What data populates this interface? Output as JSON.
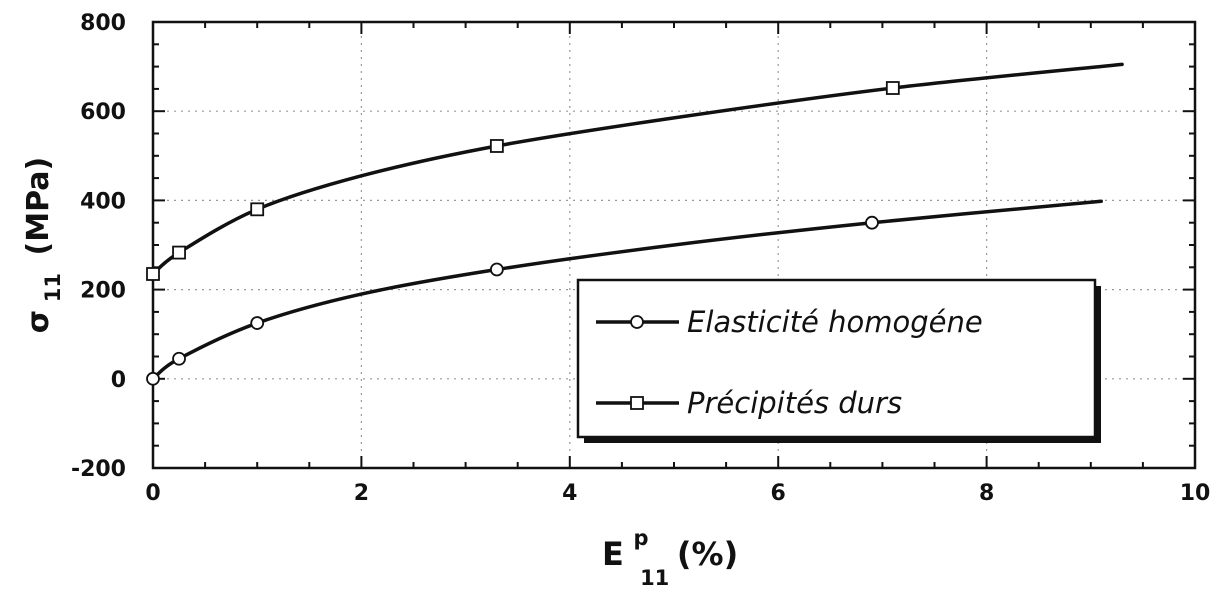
{
  "chart_data": {
    "type": "line",
    "xlabel": {
      "main": "E",
      "sup": "p",
      "sub": "11",
      "unit": "(%)"
    },
    "ylabel": {
      "main": "σ",
      "sub": "11",
      "unit": "(MPa)"
    },
    "xlim": [
      0,
      10
    ],
    "ylim": [
      -200,
      800
    ],
    "xticks": [
      0,
      2,
      4,
      6,
      8,
      10
    ],
    "yticks": [
      -200,
      0,
      200,
      400,
      600,
      800
    ],
    "xtick_labels": [
      "0",
      "2",
      "4",
      "6",
      "8",
      "10"
    ],
    "ytick_labels": [
      "-200",
      "0",
      "200",
      "400",
      "600",
      "800"
    ],
    "grid": "dotted",
    "legend_position": "lower-right",
    "series": [
      {
        "name": "Elasticité homogéne",
        "marker": "circle",
        "x": [
          0,
          0.25,
          1.0,
          2.0,
          3.3,
          5.0,
          6.9,
          9.1
        ],
        "y": [
          0,
          45,
          125,
          190,
          245,
          300,
          350,
          398
        ],
        "marker_x": [
          0,
          0.25,
          1.0,
          3.3,
          6.9
        ],
        "marker_y": [
          0,
          45,
          125,
          245,
          350
        ]
      },
      {
        "name": "Précipités durs",
        "marker": "square",
        "x": [
          0,
          0.25,
          1.0,
          2.0,
          3.3,
          5.0,
          7.1,
          9.3
        ],
        "y": [
          235,
          283,
          380,
          455,
          522,
          585,
          652,
          705
        ],
        "marker_x": [
          0,
          0.25,
          1.0,
          3.3,
          7.1
        ],
        "marker_y": [
          235,
          283,
          380,
          522,
          652
        ]
      }
    ]
  }
}
